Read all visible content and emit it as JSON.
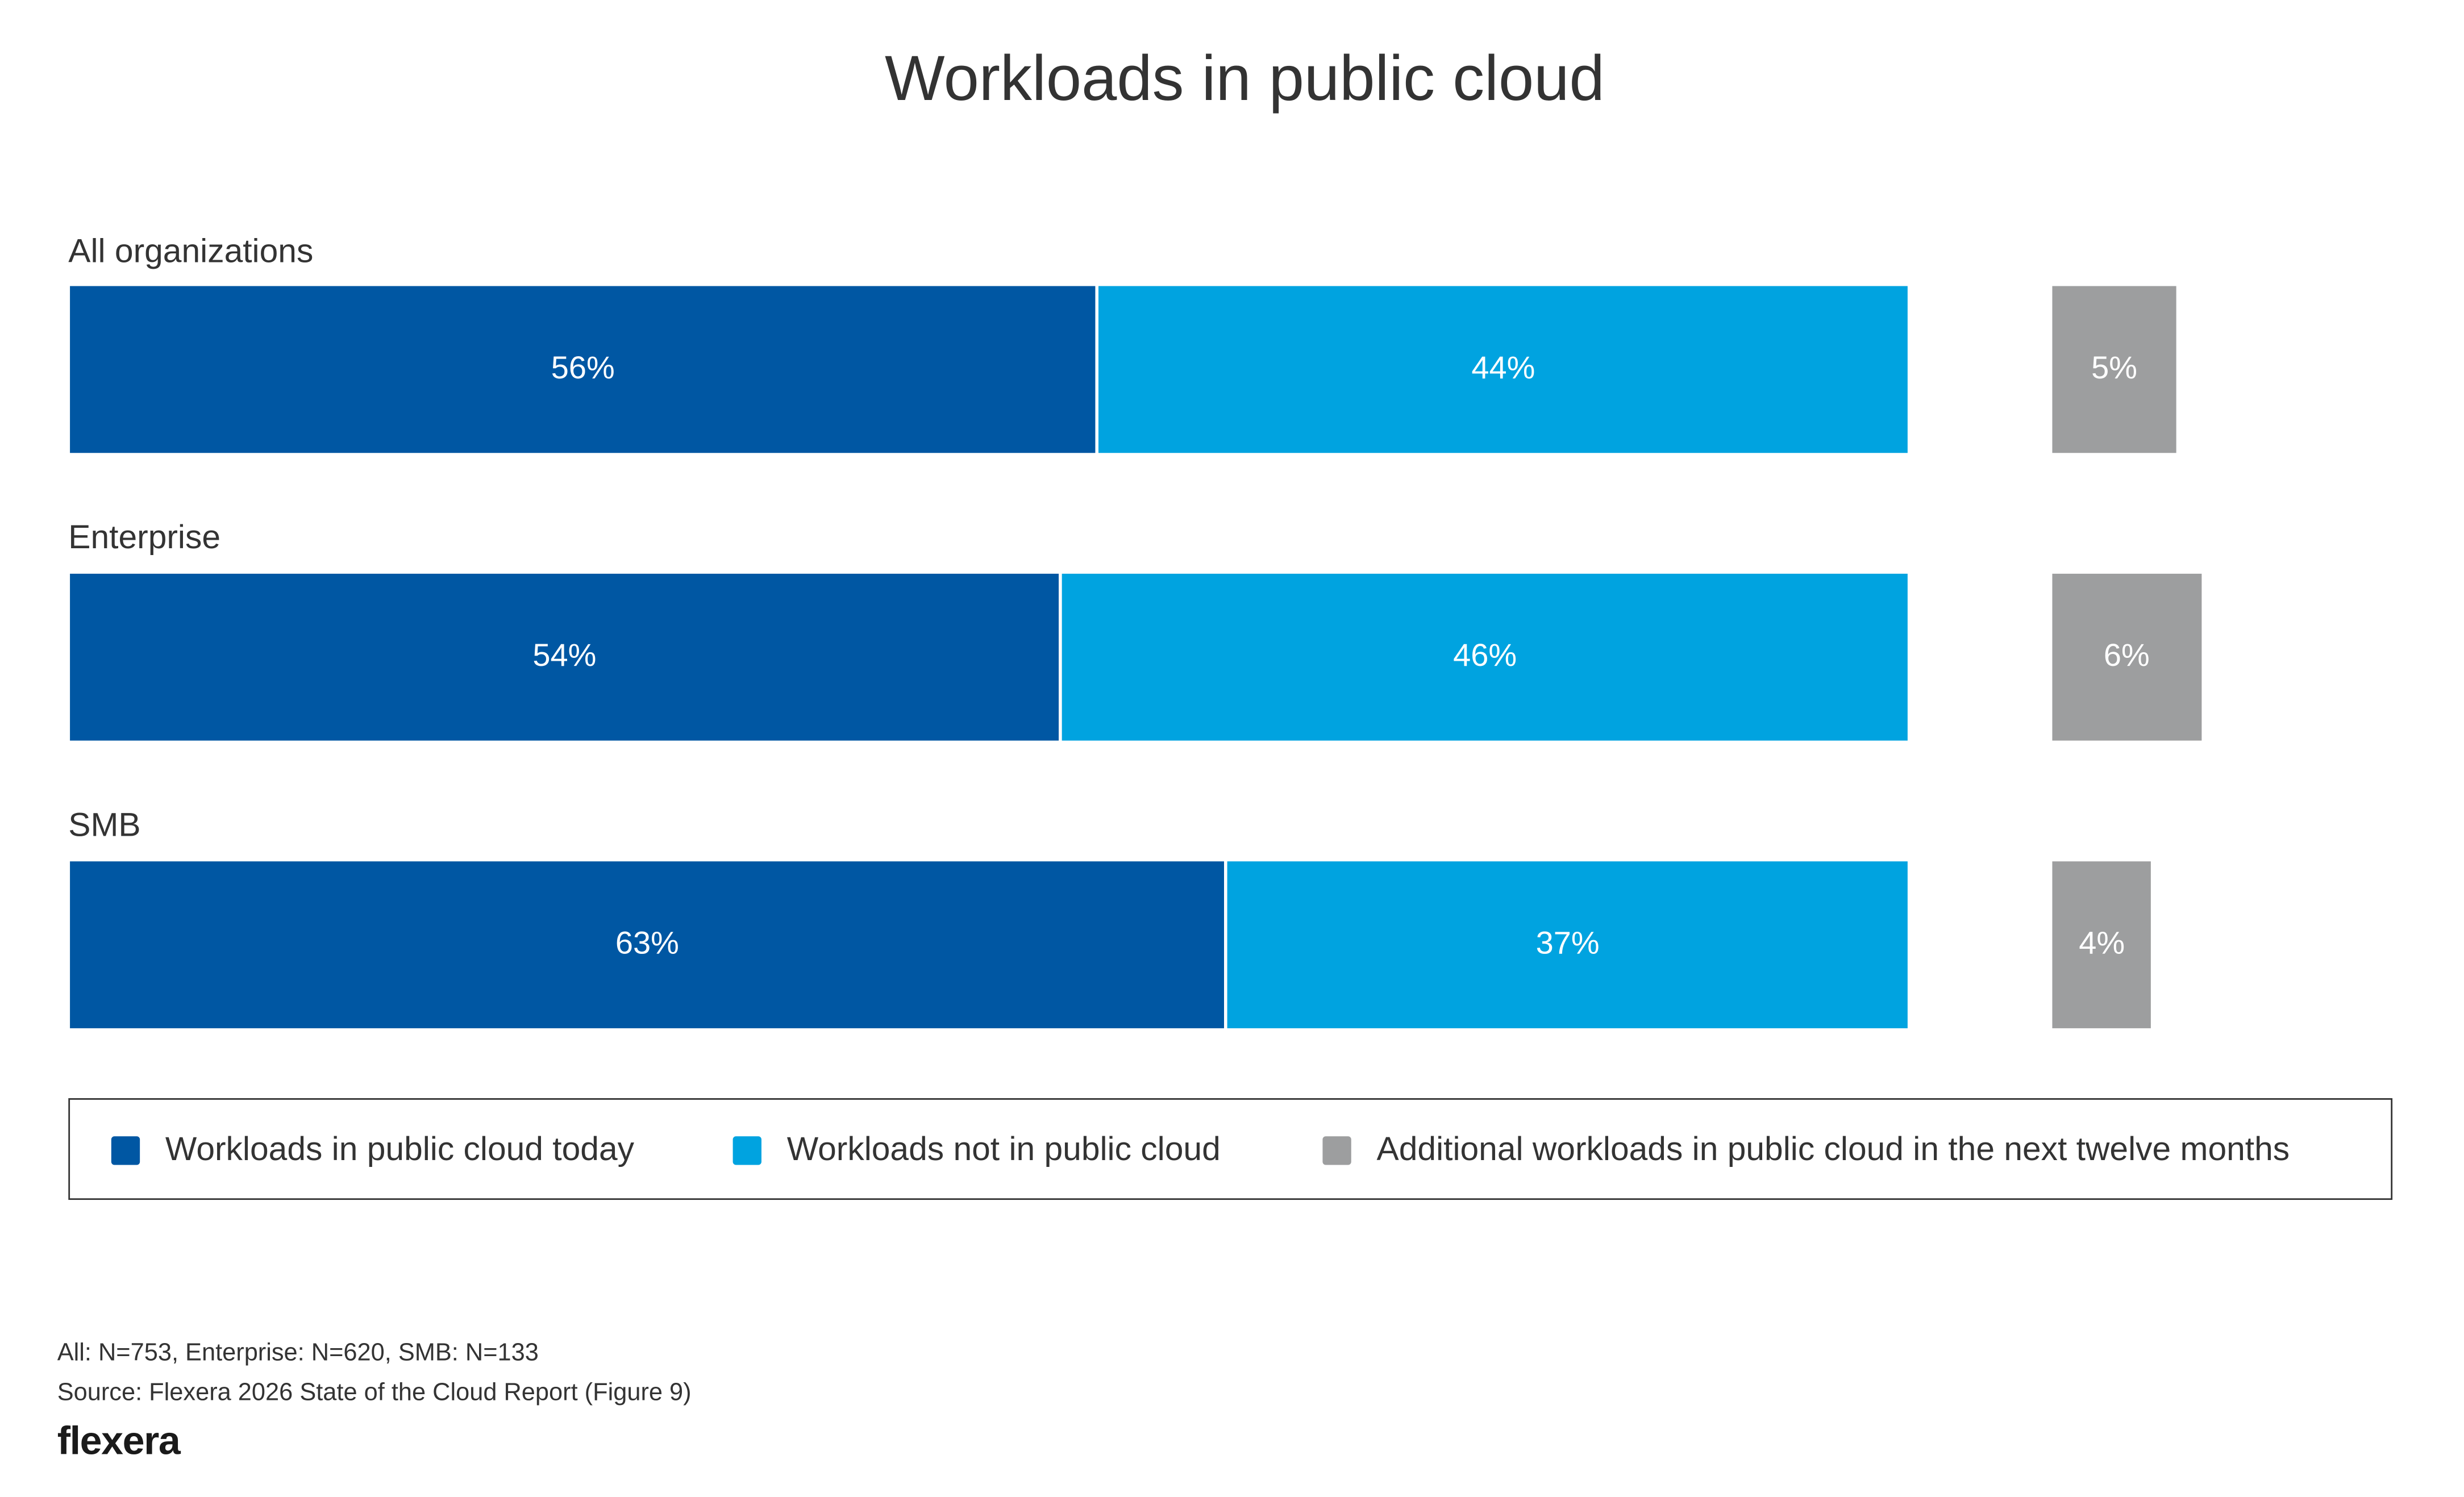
{
  "chart_data": {
    "type": "bar",
    "orientation": "horizontal-stacked",
    "title": "Workloads in public cloud",
    "categories": [
      "All organizations",
      "Enterprise",
      "SMB"
    ],
    "series": [
      {
        "name": "Workloads in public cloud today",
        "color": "#0057a3",
        "values": [
          56,
          54,
          63
        ],
        "labels": [
          "56%",
          "54%",
          "63%"
        ]
      },
      {
        "name": "Workloads not in public cloud",
        "color": "#00a3e0",
        "values": [
          44,
          46,
          37
        ],
        "labels": [
          "44%",
          "46%",
          "37%"
        ]
      },
      {
        "name": "Additional workloads in public cloud in the next twelve months",
        "color": "#9d9e9f",
        "values": [
          5,
          6,
          4
        ],
        "labels": [
          "5%",
          "6%",
          "4%"
        ]
      }
    ],
    "legend_position": "bottom",
    "grid": false
  },
  "footnotes": {
    "sample": "All: N=753, Enterprise: N=620, SMB: N=133",
    "source": "Source: Flexera 2026 State of the Cloud Report (Figure 9)"
  },
  "logo": "flexera"
}
